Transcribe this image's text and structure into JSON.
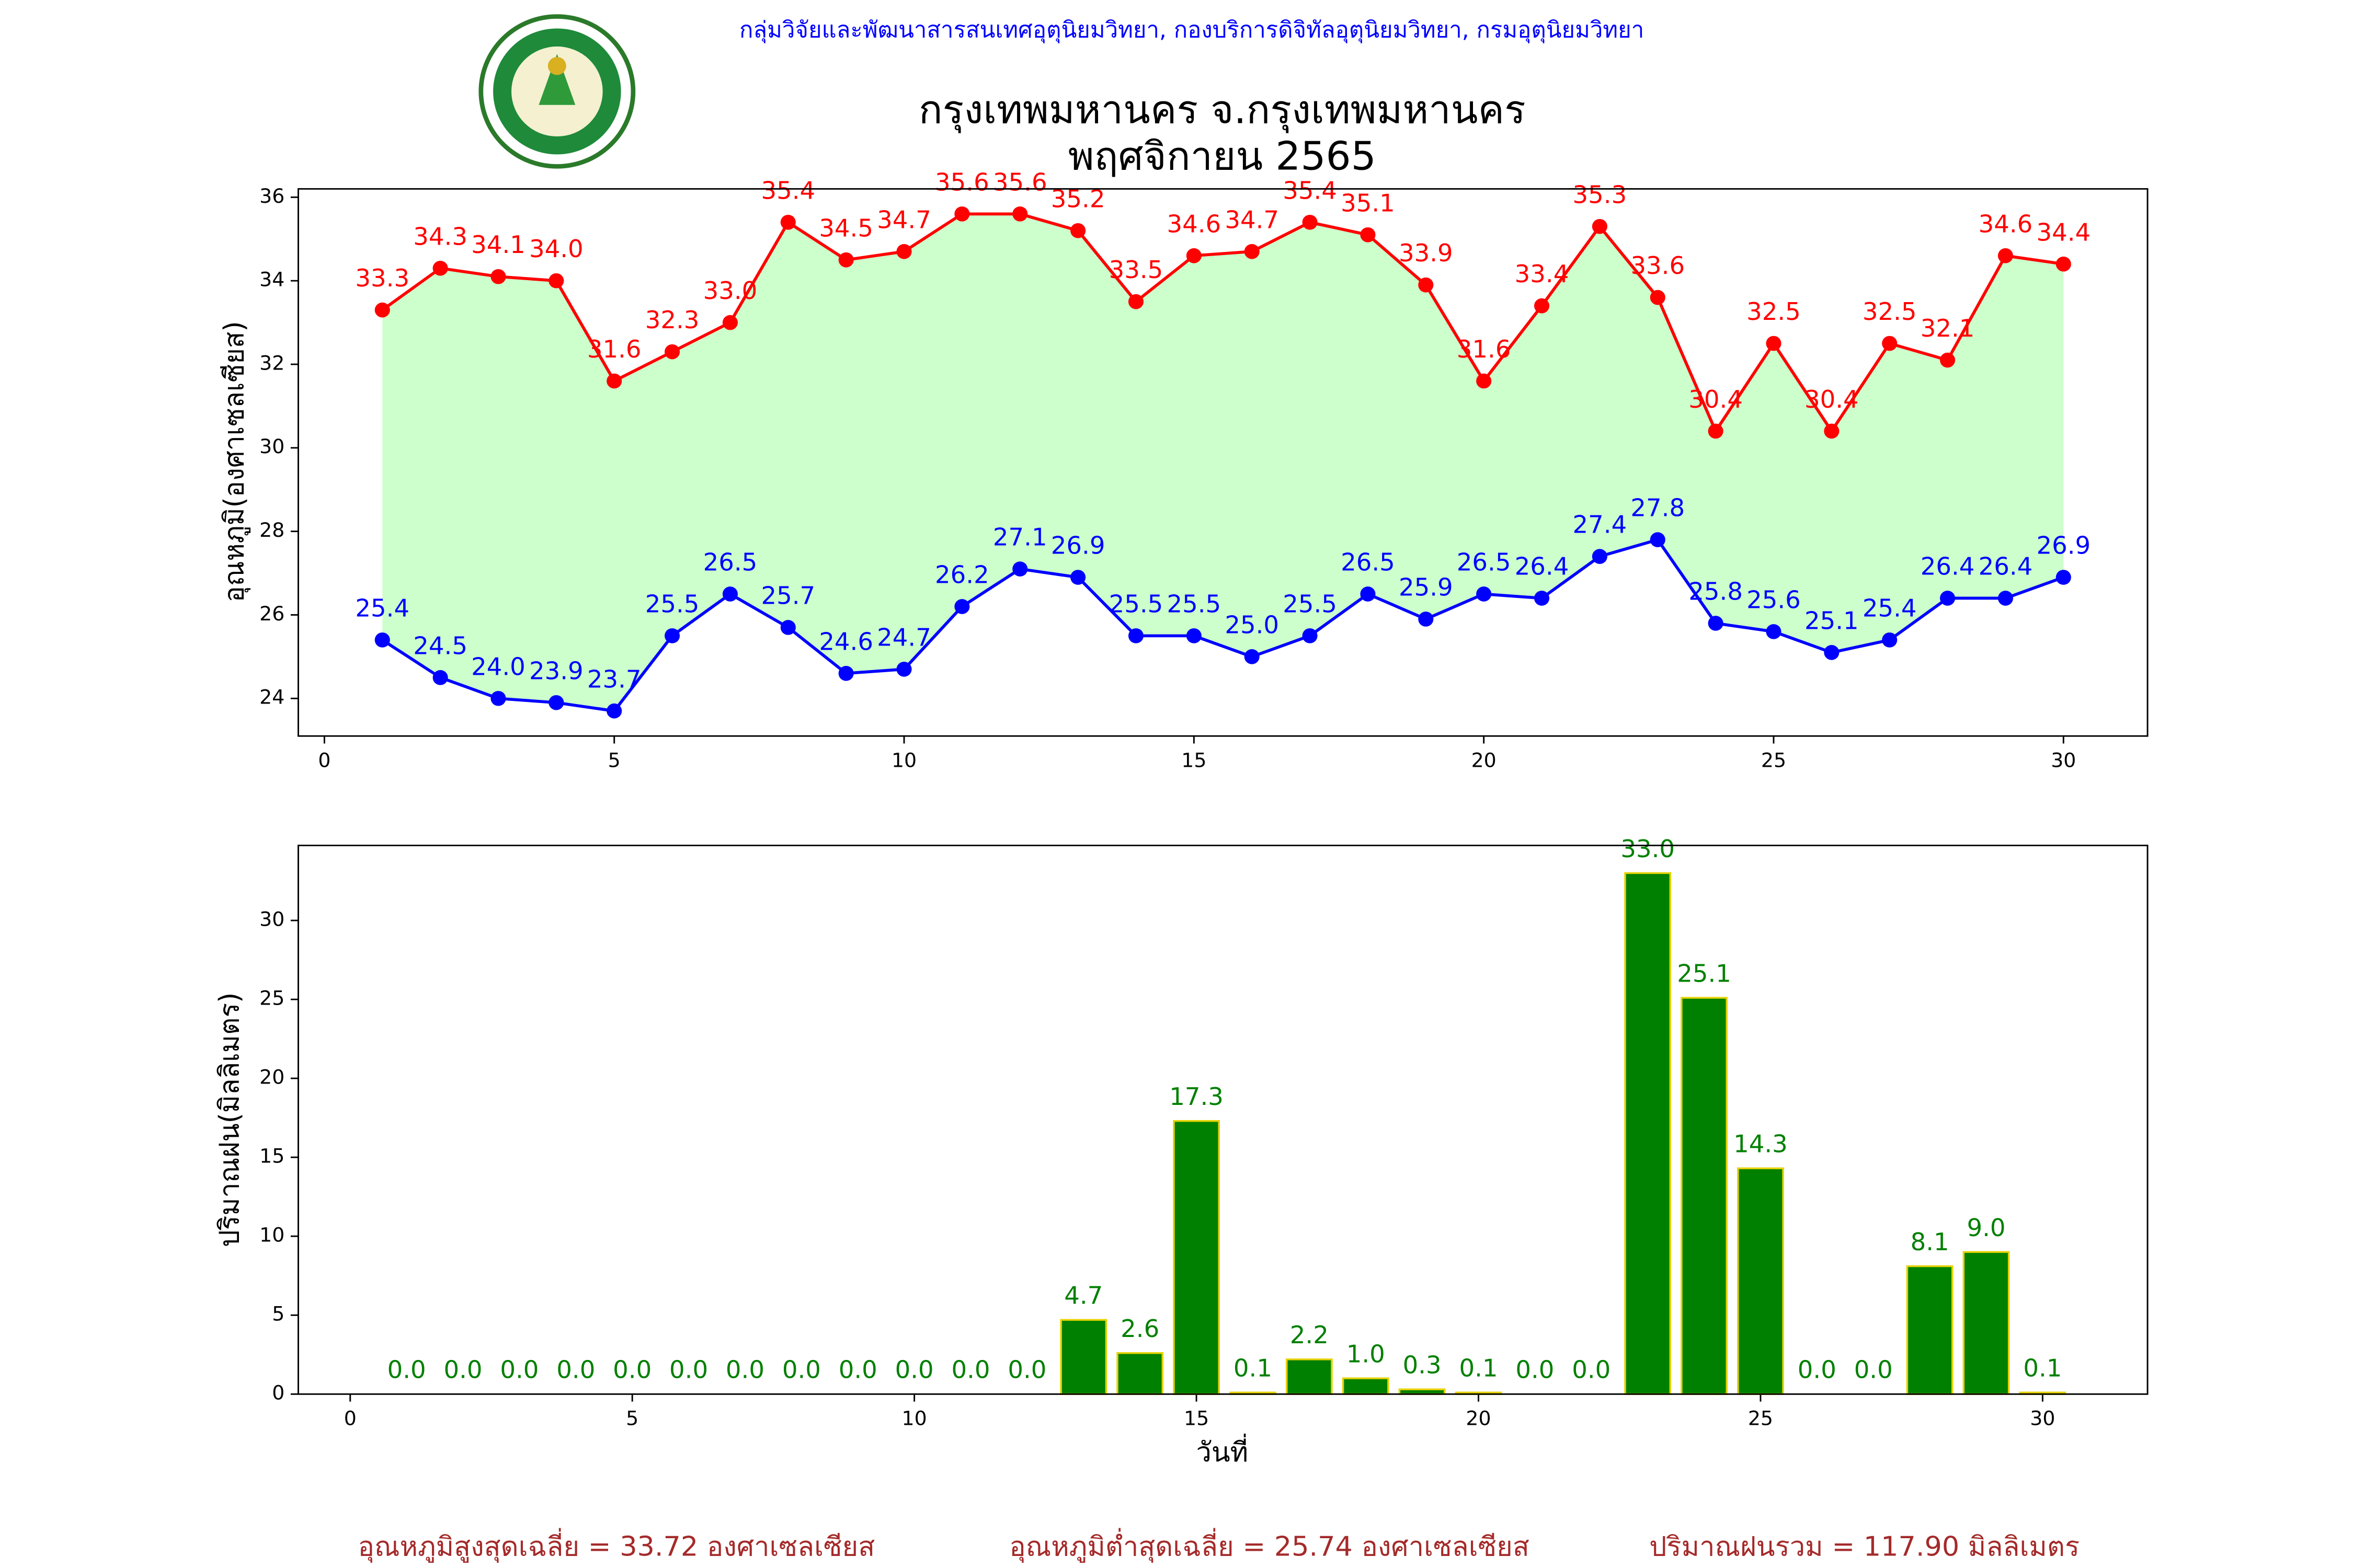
{
  "header": "กลุ่มวิจัยและพัฒนาสารสนเทศอุตุนิยมวิทยา, กองบริการดิจิทัลอุตุนิยมวิทยา, กรมอุตุนิยมวิทยา",
  "footer": [
    "อุณหภูมิสูงสุดเฉลี่ย = 33.72 องศาเซลเซียส",
    "อุณหภูมิต่ำสุดเฉลี่ย = 25.74 องศาเซลเซียส",
    "ปริมาณฝนรวม = 117.90 มิลลิเมตร"
  ],
  "chart_data": [
    {
      "type": "line",
      "title": "กรุงเทพมหานคร จ.กรุงเทพมหานคร",
      "subtitle": "พฤศจิกายน 2565",
      "ylabel": "อุณหภูมิ(องศาเซลเซียส)",
      "x": [
        1,
        2,
        3,
        4,
        5,
        6,
        7,
        8,
        9,
        10,
        11,
        12,
        13,
        14,
        15,
        16,
        17,
        18,
        19,
        20,
        21,
        22,
        23,
        24,
        25,
        26,
        27,
        28,
        29,
        30
      ],
      "xlim": [
        -0.45,
        31.45
      ],
      "xticks": [
        0,
        5,
        10,
        15,
        20,
        25,
        30
      ],
      "ylim": [
        23.1,
        36.2
      ],
      "yticks": [
        24,
        26,
        28,
        30,
        32,
        34,
        36
      ],
      "fill_between": true,
      "fill_color": "#ccffcc",
      "series": [
        {
          "color": "#ff0000",
          "values": [
            33.3,
            34.3,
            34.1,
            34.0,
            31.6,
            32.3,
            33.0,
            35.4,
            34.5,
            34.7,
            35.6,
            35.6,
            35.2,
            33.5,
            34.6,
            34.7,
            35.4,
            35.1,
            33.9,
            31.6,
            33.4,
            35.3,
            33.6,
            30.4,
            32.5,
            30.4,
            32.5,
            32.1,
            34.6,
            34.4
          ],
          "value_labels": [
            "33.3",
            "34.3",
            "34.1",
            "34.0",
            "31.6",
            "32.3",
            "33.0",
            "35.4",
            "34.5",
            "34.7",
            "35.6",
            "35.6",
            "35.2",
            "33.5",
            "34.6",
            "34.7",
            "35.4",
            "35.1",
            "33.9",
            "31.6",
            "33.4",
            "35.3",
            "33.6",
            "30.4",
            "32.5",
            "30.4",
            "32.5",
            "32.1",
            "34.6",
            "34.4"
          ]
        },
        {
          "color": "#0000ff",
          "values": [
            25.4,
            24.5,
            24.0,
            23.9,
            23.7,
            25.5,
            26.5,
            25.7,
            24.6,
            24.7,
            26.2,
            27.1,
            26.9,
            25.5,
            25.5,
            25.0,
            25.5,
            26.5,
            25.9,
            26.5,
            26.4,
            27.4,
            27.8,
            25.8,
            25.6,
            25.1,
            25.4,
            26.4,
            26.4,
            26.9
          ],
          "value_labels": [
            "25.4",
            "24.5",
            "24.0",
            "23.9",
            "23.7",
            "25.5",
            "26.5",
            "25.7",
            "24.6",
            "24.7",
            "26.2",
            "27.1",
            "26.9",
            "25.5",
            "25.5",
            "25.0",
            "25.5",
            "26.5",
            "25.9",
            "26.5",
            "26.4",
            "27.4",
            "27.8",
            "25.8",
            "25.6",
            "25.1",
            "25.4",
            "26.4",
            "26.4",
            "26.9"
          ]
        }
      ]
    },
    {
      "type": "bar",
      "ylabel": "ปริมาณฝน(มิลลิเมตร)",
      "xlabel": "วันที่",
      "x": [
        1,
        2,
        3,
        4,
        5,
        6,
        7,
        8,
        9,
        10,
        11,
        12,
        13,
        14,
        15,
        16,
        17,
        18,
        19,
        20,
        21,
        22,
        23,
        24,
        25,
        26,
        27,
        28,
        29,
        30
      ],
      "xlim": [
        -0.92,
        31.86
      ],
      "xticks": [
        0,
        5,
        10,
        15,
        20,
        25,
        30
      ],
      "ylim": [
        0,
        34.75
      ],
      "yticks": [
        0,
        5,
        10,
        15,
        20,
        25,
        30
      ],
      "color": "#008000",
      "edge_color": "#e6d200",
      "values": [
        0,
        0,
        0,
        0,
        0,
        0,
        0,
        0,
        0,
        0,
        0,
        0,
        4.7,
        2.6,
        17.3,
        0.1,
        2.2,
        1.0,
        0.3,
        0.1,
        0,
        0,
        33.0,
        25.1,
        14.3,
        0,
        0,
        8.1,
        9.0,
        0.1
      ],
      "value_labels": [
        "0.0",
        "0.0",
        "0.0",
        "0.0",
        "0.0",
        "0.0",
        "0.0",
        "0.0",
        "0.0",
        "0.0",
        "0.0",
        "0.0",
        "4.7",
        "2.6",
        "17.3",
        "0.1",
        "2.2",
        "1.0",
        "0.3",
        "0.1",
        "0.0",
        "0.0",
        "33.0",
        "25.1",
        "14.3",
        "0.0",
        "0.0",
        "8.1",
        "9.0",
        "0.1"
      ]
    }
  ]
}
